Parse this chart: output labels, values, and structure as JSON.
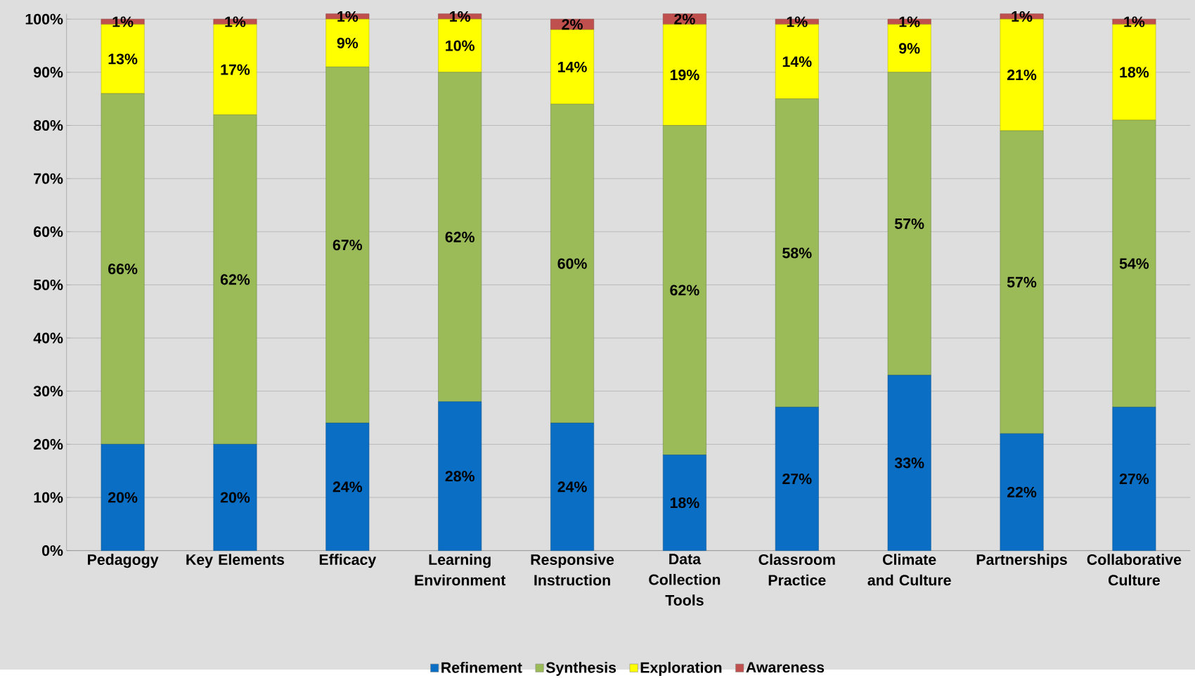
{
  "chart_data": {
    "type": "bar",
    "stacked": true,
    "categories": [
      "Pedagogy",
      "Key Elements",
      "Efficacy",
      "Learning Environment",
      "Responsive Instruction",
      "Data Collection Tools",
      "Classroom Practice",
      "Climate and Culture",
      "Partnerships",
      "Collaborative Culture"
    ],
    "series": [
      {
        "name": "Refinement",
        "color": "#0a6fc4",
        "values": [
          20,
          20,
          24,
          28,
          24,
          18,
          27,
          33,
          22,
          27
        ],
        "value_labels": [
          "20%",
          "20%",
          "24%",
          "28%",
          "24%",
          "18%",
          "27%",
          "33%",
          "22%",
          "27%"
        ]
      },
      {
        "name": "Synthesis",
        "color": "#9bbb59",
        "values": [
          66,
          62,
          67,
          62,
          60,
          62,
          58,
          57,
          57,
          54
        ],
        "value_labels": [
          "66%",
          "62%",
          "67%",
          "62%",
          "60%",
          "62%",
          "58%",
          "57%",
          "57%",
          "54%"
        ]
      },
      {
        "name": "Exploration",
        "color": "#ffff00",
        "values": [
          13,
          17,
          9,
          10,
          14,
          19,
          14,
          9,
          21,
          18
        ],
        "value_labels": [
          "13%",
          "17%",
          "9%",
          "10%",
          "14%",
          "19%",
          "14%",
          "9%",
          "21%",
          "18%"
        ]
      },
      {
        "name": "Awareness",
        "color": "#c0504d",
        "values": [
          1,
          1,
          1,
          1,
          2,
          2,
          1,
          1,
          1,
          1
        ],
        "value_labels": [
          "1%",
          "1%",
          "1%",
          "1%",
          "2%",
          "2%",
          "1%",
          "1%",
          "1%",
          "1%"
        ]
      }
    ],
    "ylim": [
      0,
      101
    ],
    "yticks": [
      {
        "value": 0,
        "label": "0%"
      },
      {
        "value": 10,
        "label": "10%"
      },
      {
        "value": 20,
        "label": "20%"
      },
      {
        "value": 30,
        "label": "30%"
      },
      {
        "value": 40,
        "label": "40%"
      },
      {
        "value": 50,
        "label": "50%"
      },
      {
        "value": 60,
        "label": "60%"
      },
      {
        "value": 70,
        "label": "70%"
      },
      {
        "value": 80,
        "label": "80%"
      },
      {
        "value": 90,
        "label": "90%"
      },
      {
        "value": 100,
        "label": "100%"
      }
    ],
    "grid": "y",
    "legend": "bottom"
  }
}
